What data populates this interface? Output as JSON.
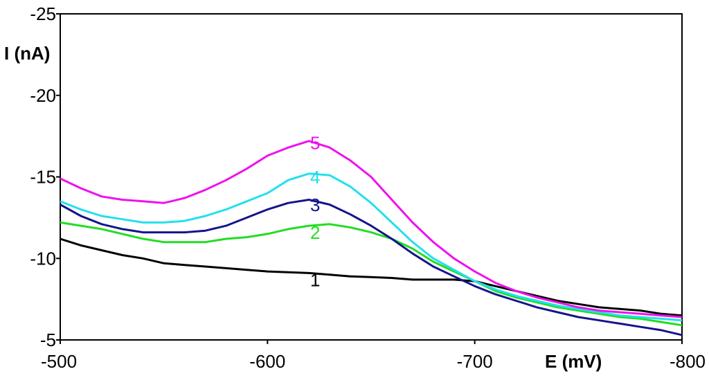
{
  "chart_data": {
    "type": "line",
    "xlabel": "E (mV)",
    "ylabel": "I (nA)",
    "xlim": [
      -500,
      -800
    ],
    "ylim": [
      -5,
      -25
    ],
    "x_ticks": [
      "-500",
      "-600",
      "-700",
      "-800"
    ],
    "y_ticks": [
      "-5",
      "-10",
      "-15",
      "-20",
      "-25"
    ],
    "x_tick_values": [
      -500,
      -600,
      -700,
      -800
    ],
    "y_tick_values": [
      -5,
      -10,
      -15,
      -20,
      -25
    ],
    "grid": false,
    "series": [
      {
        "name": "1",
        "color": "#000000",
        "x": [
          -500,
          -510,
          -520,
          -530,
          -540,
          -550,
          -560,
          -570,
          -580,
          -590,
          -600,
          -610,
          -620,
          -630,
          -640,
          -650,
          -660,
          -670,
          -680,
          -690,
          -700,
          -710,
          -720,
          -730,
          -740,
          -750,
          -760,
          -770,
          -780,
          -790,
          -800
        ],
        "y": [
          -11.2,
          -10.8,
          -10.5,
          -10.2,
          -10.0,
          -9.7,
          -9.6,
          -9.5,
          -9.4,
          -9.3,
          -9.2,
          -9.15,
          -9.1,
          -9.0,
          -8.9,
          -8.85,
          -8.8,
          -8.7,
          -8.7,
          -8.7,
          -8.6,
          -8.3,
          -8.0,
          -7.7,
          -7.4,
          -7.2,
          -7.0,
          -6.9,
          -6.8,
          -6.6,
          -6.5
        ]
      },
      {
        "name": "2",
        "color": "#22dd22",
        "x": [
          -500,
          -510,
          -520,
          -530,
          -540,
          -550,
          -560,
          -570,
          -580,
          -590,
          -600,
          -610,
          -620,
          -630,
          -640,
          -650,
          -660,
          -670,
          -680,
          -690,
          -700,
          -710,
          -720,
          -730,
          -740,
          -750,
          -760,
          -770,
          -780,
          -790,
          -800
        ],
        "y": [
          -12.2,
          -12.0,
          -11.8,
          -11.5,
          -11.2,
          -11.0,
          -11.0,
          -11.0,
          -11.2,
          -11.3,
          -11.5,
          -11.8,
          -12.0,
          -12.1,
          -11.9,
          -11.6,
          -11.2,
          -10.6,
          -9.8,
          -9.2,
          -8.6,
          -8.0,
          -7.6,
          -7.3,
          -7.0,
          -6.8,
          -6.6,
          -6.4,
          -6.3,
          -6.1,
          -5.9
        ]
      },
      {
        "name": "3",
        "color": "#14148c",
        "x": [
          -500,
          -510,
          -520,
          -530,
          -540,
          -550,
          -560,
          -570,
          -580,
          -590,
          -600,
          -610,
          -620,
          -630,
          -640,
          -650,
          -660,
          -670,
          -680,
          -690,
          -700,
          -710,
          -720,
          -730,
          -740,
          -750,
          -760,
          -770,
          -780,
          -790,
          -800
        ],
        "y": [
          -13.3,
          -12.6,
          -12.1,
          -11.8,
          -11.6,
          -11.6,
          -11.6,
          -11.7,
          -12.0,
          -12.5,
          -13.0,
          -13.4,
          -13.6,
          -13.3,
          -12.7,
          -12.0,
          -11.2,
          -10.3,
          -9.5,
          -8.9,
          -8.3,
          -7.8,
          -7.4,
          -7.0,
          -6.7,
          -6.4,
          -6.2,
          -6.0,
          -5.8,
          -5.6,
          -5.3
        ]
      },
      {
        "name": "4",
        "color": "#22e0ef",
        "x": [
          -500,
          -510,
          -520,
          -530,
          -540,
          -550,
          -560,
          -570,
          -580,
          -590,
          -600,
          -610,
          -620,
          -630,
          -640,
          -650,
          -660,
          -670,
          -680,
          -690,
          -700,
          -710,
          -720,
          -730,
          -740,
          -750,
          -760,
          -770,
          -780,
          -790,
          -800
        ],
        "y": [
          -13.5,
          -13.0,
          -12.6,
          -12.4,
          -12.2,
          -12.2,
          -12.3,
          -12.6,
          -13.0,
          -13.5,
          -14.0,
          -14.8,
          -15.2,
          -15.1,
          -14.4,
          -13.4,
          -12.2,
          -11.0,
          -10.0,
          -9.3,
          -8.6,
          -8.1,
          -7.7,
          -7.4,
          -7.1,
          -6.9,
          -6.7,
          -6.5,
          -6.4,
          -6.3,
          -6.2
        ]
      },
      {
        "name": "5",
        "color": "#ee11ee",
        "x": [
          -500,
          -510,
          -520,
          -530,
          -540,
          -550,
          -560,
          -570,
          -580,
          -590,
          -600,
          -610,
          -620,
          -630,
          -640,
          -650,
          -660,
          -670,
          -680,
          -690,
          -700,
          -710,
          -720,
          -730,
          -740,
          -750,
          -760,
          -770,
          -780,
          -790,
          -800
        ],
        "y": [
          -14.9,
          -14.3,
          -13.8,
          -13.6,
          -13.5,
          -13.4,
          -13.7,
          -14.2,
          -14.8,
          -15.5,
          -16.3,
          -16.8,
          -17.2,
          -16.8,
          -16.0,
          -15.0,
          -13.6,
          -12.2,
          -11.0,
          -10.0,
          -9.2,
          -8.5,
          -8.0,
          -7.6,
          -7.3,
          -7.0,
          -6.8,
          -6.7,
          -6.6,
          -6.5,
          -6.4
        ]
      }
    ],
    "series_labels": [
      {
        "text": "1",
        "x": -623,
        "y": -8.3,
        "color": "#000000"
      },
      {
        "text": "2",
        "x": -623,
        "y": -11.2,
        "color": "#22dd22"
      },
      {
        "text": "3",
        "x": -623,
        "y": -12.9,
        "color": "#14148c"
      },
      {
        "text": "4",
        "x": -623,
        "y": -14.6,
        "color": "#22e0ef"
      },
      {
        "text": "5",
        "x": -623,
        "y": -16.7,
        "color": "#ee11ee"
      }
    ]
  }
}
